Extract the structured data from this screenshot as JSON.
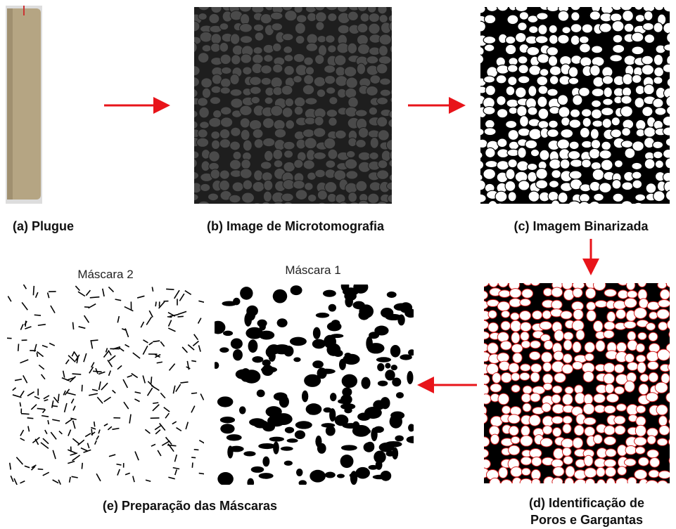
{
  "panels": [
    {
      "label": "(a) Plugue"
    },
    {
      "label": "(b) Image de Microtomografia"
    },
    {
      "label": "(c) Imagem Binarizada"
    },
    {
      "label_lines": [
        "(d) Identificação de",
        "Poros e Gargantas"
      ]
    },
    {
      "label": "(e) Preparação das Máscaras",
      "masks": [
        "Máscara 2",
        "Máscara 1"
      ]
    }
  ]
}
